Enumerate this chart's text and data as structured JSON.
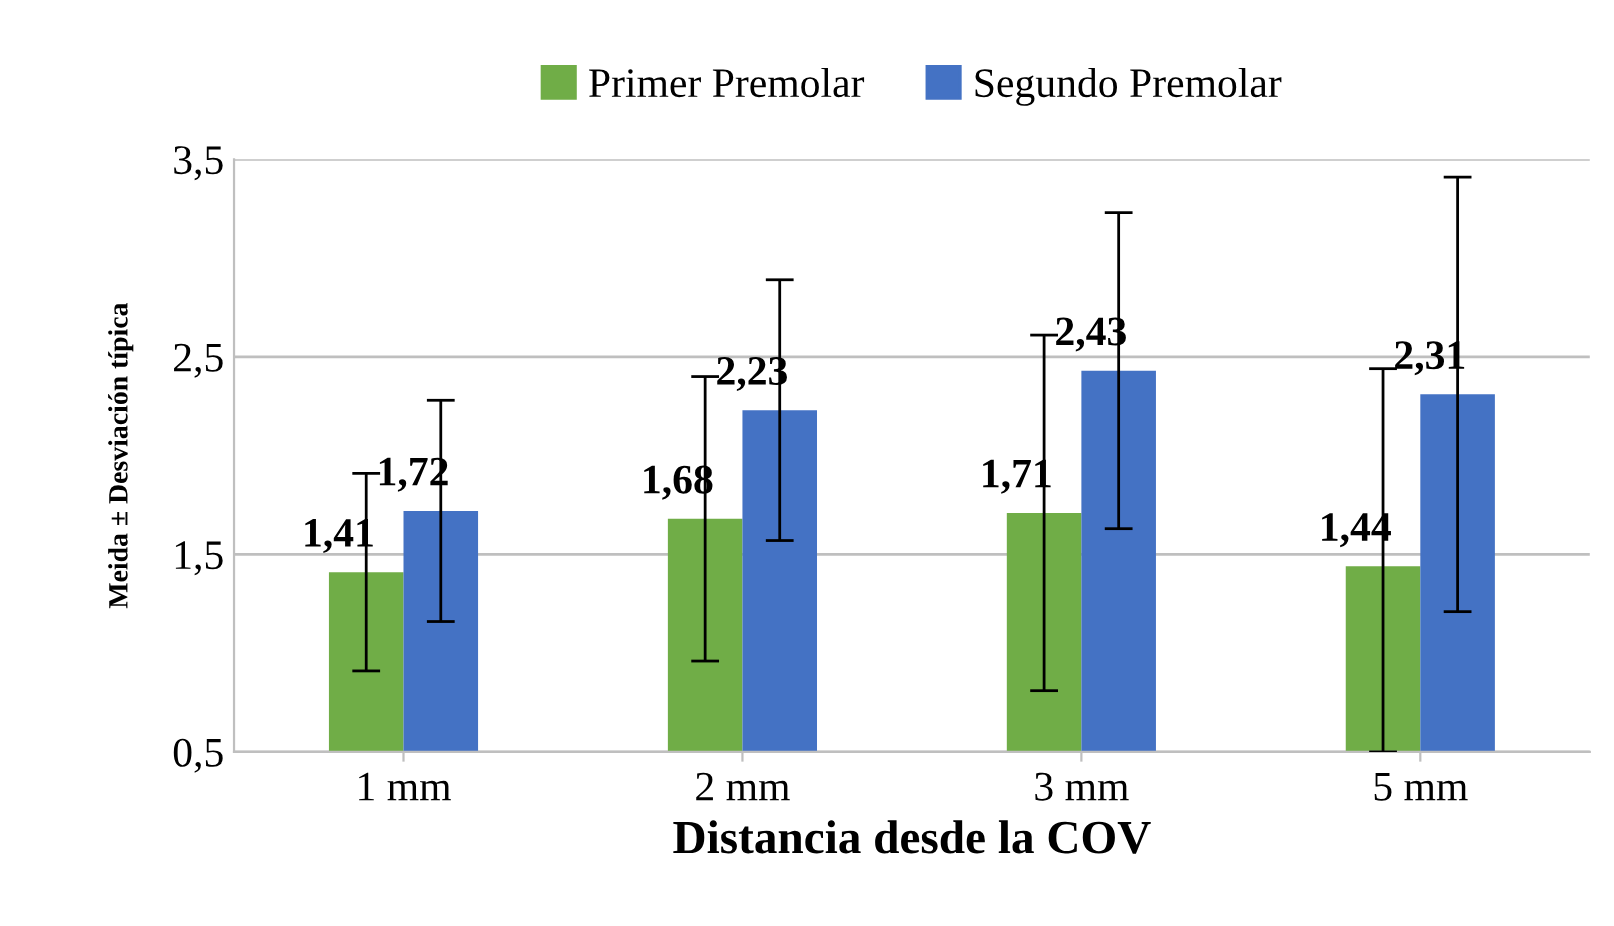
{
  "chart_data": {
    "type": "bar",
    "categories": [
      "1 mm",
      "2 mm",
      "3 mm",
      "5 mm"
    ],
    "series": [
      {
        "name": "Primer Premolar",
        "color": "#70ad47",
        "values": [
          1.41,
          1.68,
          1.71,
          1.44
        ],
        "errors": [
          0.5,
          0.72,
          0.9,
          [
            0.5,
            2.44
          ]
        ],
        "value_labels": [
          "1,41",
          "1,68",
          "1,71",
          "1,44"
        ]
      },
      {
        "name": "Segundo Premolar",
        "color": "#4472c4",
        "values": [
          1.72,
          2.23,
          2.43,
          2.31
        ],
        "errors": [
          0.56,
          0.66,
          0.8,
          1.1
        ],
        "value_labels": [
          "1,72",
          "2,23",
          "2,43",
          "2,31"
        ]
      }
    ],
    "xlabel": "Distancia desde la COV",
    "ylabel": "Meida ± Desviación típica",
    "ylim": [
      0.5,
      3.5
    ],
    "yticks": [
      {
        "value": 0.5,
        "label": "0,5"
      },
      {
        "value": 1.5,
        "label": "1,5"
      },
      {
        "value": 2.5,
        "label": "2,5"
      },
      {
        "value": 3.5,
        "label": "3,5"
      }
    ],
    "grid": "y",
    "legend": "top"
  }
}
